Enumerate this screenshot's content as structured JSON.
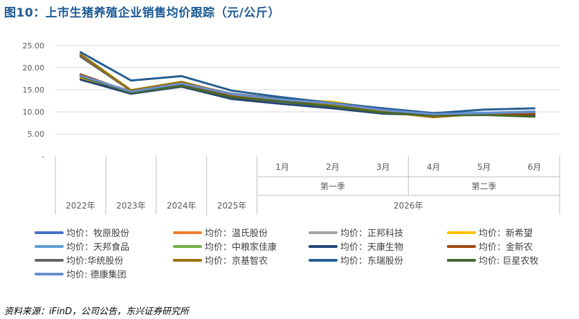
{
  "title": "图10：上市生猪养殖企业销售均价跟踪（元/公斤）",
  "source": "资料来源：iFinD，公司公告，东兴证券研究所",
  "chart_data": {
    "type": "line",
    "ylim": [
      0,
      25
    ],
    "yticks": [
      "25.00",
      "20.00",
      "15.00",
      "10.00",
      "5.00",
      "-"
    ],
    "ytick_values": [
      25,
      20,
      15,
      10,
      5,
      0
    ],
    "grid": true,
    "legend_position": "bottom",
    "categories": [
      "2022年",
      "2023年",
      "2024年",
      "2025年",
      "1月",
      "2月",
      "3月",
      "4月",
      "5月",
      "6月"
    ],
    "x_months": [
      "1月",
      "2月",
      "3月",
      "4月",
      "5月",
      "6月"
    ],
    "x_quarters": [
      "第一季",
      "第二季"
    ],
    "x_years": [
      "2022年",
      "2023年",
      "2024年",
      "2025年",
      "2026年"
    ],
    "series": [
      {
        "name": "均价：牧原股份",
        "color": "#4472c4",
        "values": [
          22.7,
          14.8,
          16.5,
          14.0,
          12.8,
          11.8,
          10.3,
          9.5,
          9.6,
          9.8
        ]
      },
      {
        "name": "均价：温氏股份",
        "color": "#ed7d31",
        "values": [
          18.0,
          14.7,
          16.2,
          13.8,
          12.6,
          11.6,
          10.1,
          9.3,
          9.6,
          10.0
        ]
      },
      {
        "name": "均价：正邦科技",
        "color": "#a5a5a5",
        "values": [
          18.2,
          14.3,
          16.0,
          13.5,
          12.5,
          11.5,
          10.0,
          9.3,
          9.5,
          9.7
        ]
      },
      {
        "name": "均价：新希望",
        "color": "#ffc000",
        "values": [
          17.6,
          14.4,
          16.3,
          13.7,
          12.7,
          12.3,
          10.4,
          9.4,
          9.7,
          9.9
        ]
      },
      {
        "name": "均价：天邦食品",
        "color": "#5b9bd5",
        "values": [
          18.3,
          14.5,
          16.4,
          14.1,
          12.9,
          11.9,
          10.2,
          9.6,
          9.8,
          10.1
        ]
      },
      {
        "name": "均价：中粮家佳康",
        "color": "#70ad47",
        "values": [
          18.1,
          14.6,
          16.1,
          13.6,
          12.5,
          11.4,
          9.9,
          9.2,
          9.4,
          9.6
        ]
      },
      {
        "name": "均价：天康生物",
        "color": "#264478",
        "values": [
          17.3,
          14.1,
          15.7,
          12.9,
          11.8,
          10.8,
          9.6,
          9.3,
          9.4,
          9.3
        ]
      },
      {
        "name": "均价：金新农",
        "color": "#9e480e",
        "values": [
          18.5,
          14.4,
          16.3,
          13.6,
          12.4,
          11.3,
          9.9,
          9.2,
          9.3,
          9.5
        ]
      },
      {
        "name": "均价:华统股份",
        "color": "#636363",
        "values": [
          22.5,
          14.8,
          16.6,
          14.1,
          12.9,
          11.9,
          10.3,
          9.4,
          9.6,
          9.9
        ]
      },
      {
        "name": "均价：京基智农",
        "color": "#997300",
        "values": [
          23.0,
          14.9,
          16.8,
          13.9,
          12.6,
          11.4,
          10.0,
          8.8,
          9.6,
          10.0
        ]
      },
      {
        "name": "均价：东瑞股份",
        "color": "#255e91",
        "values": [
          23.5,
          17.1,
          18.1,
          14.8,
          13.3,
          12.0,
          10.8,
          9.7,
          10.5,
          10.8
        ]
      },
      {
        "name": "均价: 巨星农牧",
        "color": "#43682b",
        "values": [
          18.0,
          14.3,
          15.9,
          13.3,
          12.3,
          11.2,
          9.8,
          9.2,
          9.3,
          8.9
        ]
      },
      {
        "name": "均价: 德康集团",
        "color": "#698ed0",
        "values": [
          18.2,
          14.6,
          16.4,
          14.0,
          12.8,
          11.9,
          10.4,
          9.5,
          9.7,
          10.0
        ]
      }
    ]
  }
}
